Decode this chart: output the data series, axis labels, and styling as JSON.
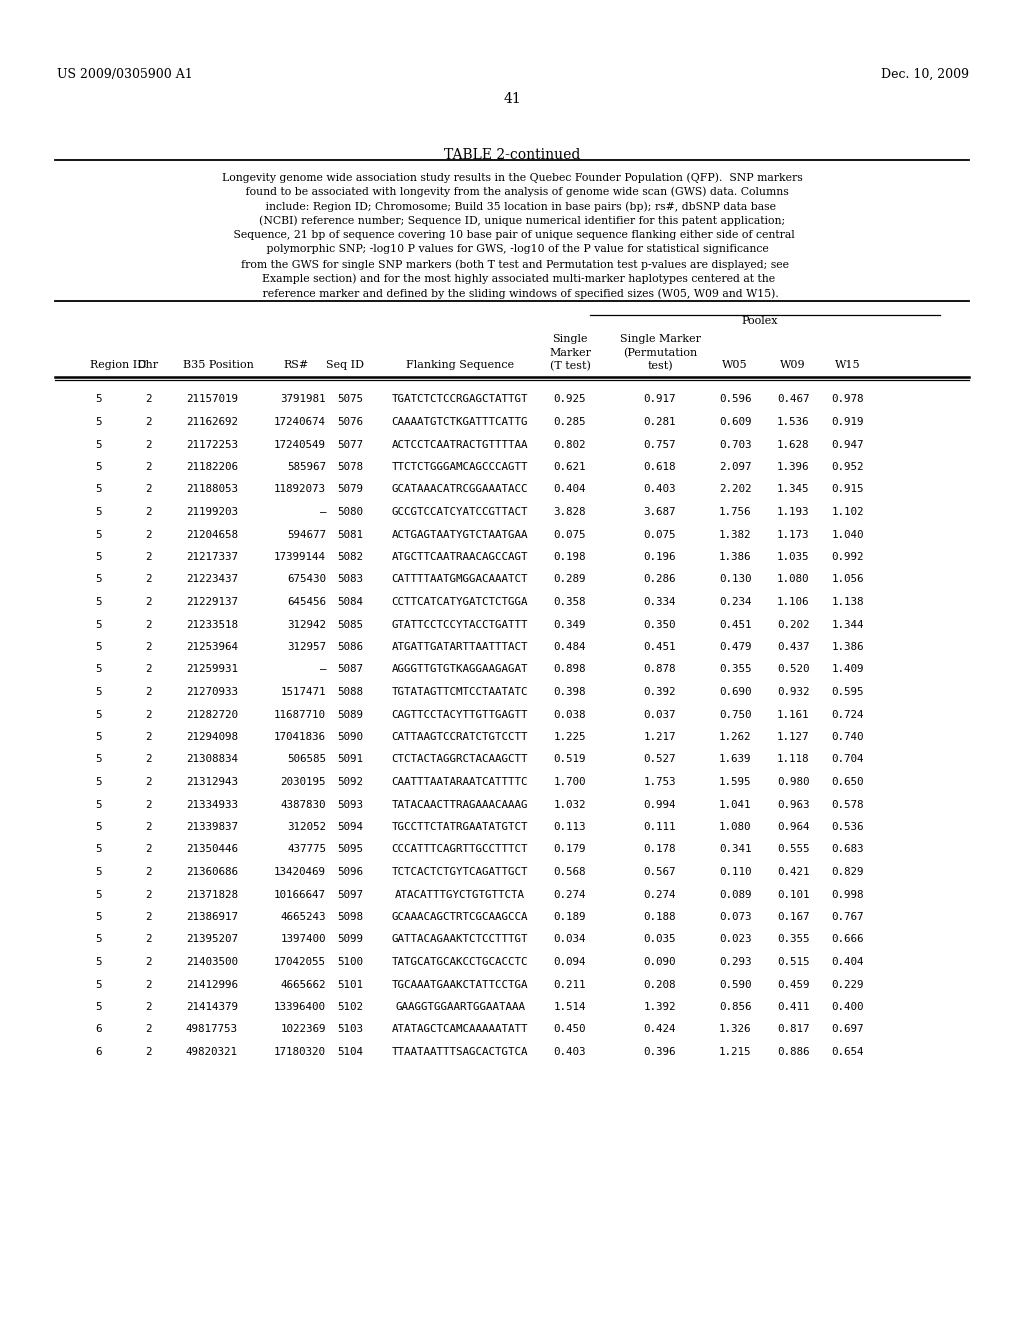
{
  "header_left": "US 2009/0305900 A1",
  "header_right": "Dec. 10, 2009",
  "page_number": "41",
  "table_title": "TABLE 2-continued",
  "description_lines": [
    "Longevity genome wide association study results in the Quebec Founder Population (QFP).  SNP markers",
    "   found to be associated with longevity from the analysis of genome wide scan (GWS) data. Columns",
    "     include: Region ID; Chromosome; Build 35 location in base pairs (bp); rs#, dbSNP data base",
    "      (NCBI) reference number; Sequence ID, unique numerical identifier for this patent application;",
    " Sequence, 21 bp of sequence covering 10 base pair of unique sequence flanking either side of central",
    "   polymorphic SNP; -log10 P values for GWS, -log10 of the P value for statistical significance",
    "  from the GWS for single SNP markers (both T test and Permutation test p-values are displayed; see",
    "    Example section) and for the most highly associated multi-marker haplotypes centered at the",
    "     reference marker and defined by the sliding windows of specified sizes (W05, W09 and W15)."
  ],
  "poolex_label": "Poolex",
  "rows": [
    [
      "5",
      "2",
      "21157019",
      "3791981",
      "5075",
      "TGATCTCTCCRGAGCTATTGT",
      "0.925",
      "0.917",
      "0.596",
      "0.467",
      "0.978"
    ],
    [
      "5",
      "2",
      "21162692",
      "17240674",
      "5076",
      "CAAAATGTCTKGATTTCATTG",
      "0.285",
      "0.281",
      "0.609",
      "1.536",
      "0.919"
    ],
    [
      "5",
      "2",
      "21172253",
      "17240549",
      "5077",
      "ACTCCTCAATRACTGTTTTAA",
      "0.802",
      "0.757",
      "0.703",
      "1.628",
      "0.947"
    ],
    [
      "5",
      "2",
      "21182206",
      "585967",
      "5078",
      "TTCTCTGGGAMCAGCCCAGTT",
      "0.621",
      "0.618",
      "2.097",
      "1.396",
      "0.952"
    ],
    [
      "5",
      "2",
      "21188053",
      "11892073",
      "5079",
      "GCATAAACATRCGGAAATACC",
      "0.404",
      "0.403",
      "2.202",
      "1.345",
      "0.915"
    ],
    [
      "5",
      "2",
      "21199203",
      "–",
      "5080",
      "GCCGTCCATCYATCCGTTACT",
      "3.828",
      "3.687",
      "1.756",
      "1.193",
      "1.102"
    ],
    [
      "5",
      "2",
      "21204658",
      "594677",
      "5081",
      "ACTGAGTAATYGTCTAATGAA",
      "0.075",
      "0.075",
      "1.382",
      "1.173",
      "1.040"
    ],
    [
      "5",
      "2",
      "21217337",
      "17399144",
      "5082",
      "ATGCTTCAATRAACAGCCAGT",
      "0.198",
      "0.196",
      "1.386",
      "1.035",
      "0.992"
    ],
    [
      "5",
      "2",
      "21223437",
      "675430",
      "5083",
      "CATTTTAATGMGGACAAATCT",
      "0.289",
      "0.286",
      "0.130",
      "1.080",
      "1.056"
    ],
    [
      "5",
      "2",
      "21229137",
      "645456",
      "5084",
      "CCTTCATCATYGATCTCTGGA",
      "0.358",
      "0.334",
      "0.234",
      "1.106",
      "1.138"
    ],
    [
      "5",
      "2",
      "21233518",
      "312942",
      "5085",
      "GTATTCCTCCYTACCTGATTT",
      "0.349",
      "0.350",
      "0.451",
      "0.202",
      "1.344"
    ],
    [
      "5",
      "2",
      "21253964",
      "312957",
      "5086",
      "ATGATTGATARTTAATTTACT",
      "0.484",
      "0.451",
      "0.479",
      "0.437",
      "1.386"
    ],
    [
      "5",
      "2",
      "21259931",
      "–",
      "5087",
      "AGGGTTGTGTKAGGAAGAGAT",
      "0.898",
      "0.878",
      "0.355",
      "0.520",
      "1.409"
    ],
    [
      "5",
      "2",
      "21270933",
      "1517471",
      "5088",
      "TGTATAGTTCMTCCTAATATC",
      "0.398",
      "0.392",
      "0.690",
      "0.932",
      "0.595"
    ],
    [
      "5",
      "2",
      "21282720",
      "11687710",
      "5089",
      "CAGTTCCTACYTTGTTGAGTT",
      "0.038",
      "0.037",
      "0.750",
      "1.161",
      "0.724"
    ],
    [
      "5",
      "2",
      "21294098",
      "17041836",
      "5090",
      "CATTAAGTCCRATCTGTCCTT",
      "1.225",
      "1.217",
      "1.262",
      "1.127",
      "0.740"
    ],
    [
      "5",
      "2",
      "21308834",
      "506585",
      "5091",
      "CTCTACTAGGRCTACAAGCTT",
      "0.519",
      "0.527",
      "1.639",
      "1.118",
      "0.704"
    ],
    [
      "5",
      "2",
      "21312943",
      "2030195",
      "5092",
      "CAATTTAATARAATCATTTTC",
      "1.700",
      "1.753",
      "1.595",
      "0.980",
      "0.650"
    ],
    [
      "5",
      "2",
      "21334933",
      "4387830",
      "5093",
      "TATACAACTTRAGAAACAAAG",
      "1.032",
      "0.994",
      "1.041",
      "0.963",
      "0.578"
    ],
    [
      "5",
      "2",
      "21339837",
      "312052",
      "5094",
      "TGCCTTCTATRGAATATGTCT",
      "0.113",
      "0.111",
      "1.080",
      "0.964",
      "0.536"
    ],
    [
      "5",
      "2",
      "21350446",
      "437775",
      "5095",
      "CCCATTTCAGRTTGCCTTTCT",
      "0.179",
      "0.178",
      "0.341",
      "0.555",
      "0.683"
    ],
    [
      "5",
      "2",
      "21360686",
      "13420469",
      "5096",
      "TCTCACTCTGYTCAGATTGCT",
      "0.568",
      "0.567",
      "0.110",
      "0.421",
      "0.829"
    ],
    [
      "5",
      "2",
      "21371828",
      "10166647",
      "5097",
      "ATACATTTGYCTGTGTTCTA",
      "0.274",
      "0.274",
      "0.089",
      "0.101",
      "0.998"
    ],
    [
      "5",
      "2",
      "21386917",
      "4665243",
      "5098",
      "GCAAACAGCTRTCGCAAGCCA",
      "0.189",
      "0.188",
      "0.073",
      "0.167",
      "0.767"
    ],
    [
      "5",
      "2",
      "21395207",
      "1397400",
      "5099",
      "GATTACAGAAKTCTCCTTTGT",
      "0.034",
      "0.035",
      "0.023",
      "0.355",
      "0.666"
    ],
    [
      "5",
      "2",
      "21403500",
      "17042055",
      "5100",
      "TATGCATGCAKCCTGCACCTC",
      "0.094",
      "0.090",
      "0.293",
      "0.515",
      "0.404"
    ],
    [
      "5",
      "2",
      "21412996",
      "4665662",
      "5101",
      "TGCAAATGAAKCTATTCCTGA",
      "0.211",
      "0.208",
      "0.590",
      "0.459",
      "0.229"
    ],
    [
      "5",
      "2",
      "21414379",
      "13396400",
      "5102",
      "GAAGGTGGAARTGGAATAAA",
      "1.514",
      "1.392",
      "0.856",
      "0.411",
      "0.400"
    ],
    [
      "6",
      "2",
      "49817753",
      "1022369",
      "5103",
      "ATATAGCTCAMCAAAAATATT",
      "0.450",
      "0.424",
      "1.326",
      "0.817",
      "0.697"
    ],
    [
      "6",
      "2",
      "49820321",
      "17180320",
      "5104",
      "TTAATAATTTSAGCACTGTCA",
      "0.403",
      "0.396",
      "1.215",
      "0.886",
      "0.654"
    ]
  ],
  "bg_color": "#ffffff",
  "text_color": "#000000"
}
